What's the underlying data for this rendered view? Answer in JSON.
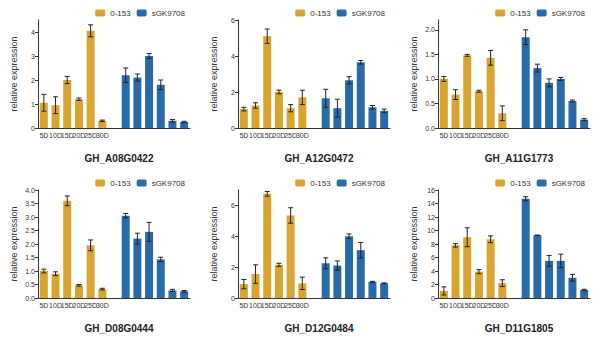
{
  "chart_data": [
    {
      "type": "bar",
      "title": "GH_A08G0422",
      "ylabel": "relative expression",
      "categories": [
        "5D",
        "10D",
        "15D",
        "20D",
        "25D",
        "30D",
        null,
        null,
        null,
        null,
        null,
        null,
        null
      ],
      "series": [
        {
          "name": "0-153",
          "color": "#DAA430",
          "values": [
            1.05,
            0.95,
            2.0,
            1.2,
            4.05,
            0.3,
            null,
            null,
            null,
            null,
            null,
            null,
            null
          ],
          "errors": [
            0.35,
            0.35,
            0.15,
            0.05,
            0.25,
            0.03,
            null,
            null,
            null,
            null,
            null,
            null,
            null
          ]
        },
        {
          "name": "sGK9708",
          "color": "#2A6AA8",
          "values": [
            null,
            null,
            null,
            null,
            null,
            null,
            null,
            2.2,
            2.1,
            3.0,
            1.8,
            0.3,
            0.25
          ],
          "errors": [
            null,
            null,
            null,
            null,
            null,
            null,
            null,
            0.3,
            0.15,
            0.1,
            0.2,
            0.05,
            0.03
          ]
        }
      ],
      "ylim": [
        0,
        4.5
      ],
      "yticks": [
        0,
        1,
        2,
        3,
        4
      ],
      "grid": false,
      "legend": "top right"
    },
    {
      "type": "bar",
      "title": "GH_A12G0472",
      "ylabel": "relative expression",
      "categories": [
        "5D",
        "10D",
        "15D",
        "20D",
        "25D",
        "30D",
        null,
        null,
        null,
        null,
        null,
        null,
        null
      ],
      "series": [
        {
          "name": "0-153",
          "color": "#DAA430",
          "values": [
            1.05,
            1.25,
            5.1,
            2.0,
            1.1,
            1.7,
            null,
            null,
            null,
            null,
            null,
            null,
            null
          ],
          "errors": [
            0.1,
            0.15,
            0.4,
            0.1,
            0.2,
            0.4,
            null,
            null,
            null,
            null,
            null,
            null,
            null
          ]
        },
        {
          "name": "sGK9708",
          "color": "#2A6AA8",
          "values": [
            null,
            null,
            null,
            null,
            null,
            null,
            null,
            1.65,
            1.1,
            2.65,
            3.65,
            1.15,
            0.95
          ],
          "errors": [
            null,
            null,
            null,
            null,
            null,
            null,
            null,
            0.5,
            0.5,
            0.2,
            0.1,
            0.1,
            0.1
          ]
        }
      ],
      "ylim": [
        0,
        6
      ],
      "yticks": [
        0,
        2,
        4,
        6
      ],
      "grid": false,
      "legend": "top right"
    },
    {
      "type": "bar",
      "title": "GH_A11G1773",
      "ylabel": "relative expression",
      "categories": [
        "5D",
        "10D",
        "15D",
        "20D",
        "25D",
        "30D",
        null,
        null,
        null,
        null,
        null,
        null,
        null
      ],
      "series": [
        {
          "name": "0-153",
          "color": "#DAA430",
          "values": [
            1.0,
            0.68,
            1.48,
            0.75,
            1.43,
            0.3,
            null,
            null,
            null,
            null,
            null,
            null,
            null
          ],
          "errors": [
            0.05,
            0.1,
            0.02,
            0.02,
            0.15,
            0.15,
            null,
            null,
            null,
            null,
            null,
            null,
            null
          ]
        },
        {
          "name": "sGK9708",
          "color": "#2A6AA8",
          "values": [
            null,
            null,
            null,
            null,
            null,
            null,
            null,
            1.85,
            1.22,
            0.92,
            1.0,
            0.55,
            0.17
          ],
          "errors": [
            null,
            null,
            null,
            null,
            null,
            null,
            null,
            0.15,
            0.08,
            0.08,
            0.03,
            0.02,
            0.02
          ]
        }
      ],
      "ylim": [
        0,
        2.2
      ],
      "yticks": [
        {
          "value": 0,
          "label": "0.0"
        },
        0.5,
        {
          "value": 1,
          "label": "1.0"
        },
        1.5,
        {
          "value": 2,
          "label": "2.0"
        }
      ],
      "grid": false,
      "legend": "top right"
    },
    {
      "type": "bar",
      "title": "GH_D08G0444",
      "ylabel": "relative expression",
      "categories": [
        "5D",
        "10D",
        "15D",
        "20D",
        "25D",
        "30D",
        null,
        null,
        null,
        null,
        null,
        null,
        null
      ],
      "series": [
        {
          "name": "0-153",
          "color": "#DAA430",
          "values": [
            1.0,
            0.9,
            3.6,
            0.47,
            1.95,
            0.33,
            null,
            null,
            null,
            null,
            null,
            null,
            null
          ],
          "errors": [
            0.07,
            0.07,
            0.18,
            0.03,
            0.2,
            0.03,
            null,
            null,
            null,
            null,
            null,
            null,
            null
          ]
        },
        {
          "name": "sGK9708",
          "color": "#2A6AA8",
          "values": [
            null,
            null,
            null,
            null,
            null,
            null,
            null,
            3.05,
            2.2,
            2.45,
            1.43,
            0.28,
            0.25
          ],
          "errors": [
            null,
            null,
            null,
            null,
            null,
            null,
            null,
            0.08,
            0.2,
            0.35,
            0.08,
            0.04,
            0.03
          ]
        }
      ],
      "ylim": [
        0,
        4
      ],
      "yticks": [
        {
          "value": 0,
          "label": "0.0"
        },
        0.5,
        {
          "value": 1,
          "label": "1.0"
        },
        1.5,
        {
          "value": 2,
          "label": "2.0"
        },
        2.5,
        {
          "value": 3,
          "label": "3.0"
        },
        3.5,
        {
          "value": 4,
          "label": "4.0"
        }
      ],
      "grid": false,
      "legend": "top right"
    },
    {
      "type": "bar",
      "title": "GH_D12G0484",
      "ylabel": "relative expression",
      "categories": [
        "5D",
        "10D",
        "15D",
        "20D",
        "25D",
        "30D",
        null,
        null,
        null,
        null,
        null,
        null,
        null
      ],
      "series": [
        {
          "name": "0-153",
          "color": "#DAA430",
          "values": [
            0.9,
            1.55,
            6.75,
            2.15,
            5.35,
            0.95,
            null,
            null,
            null,
            null,
            null,
            null,
            null
          ],
          "errors": [
            0.3,
            0.6,
            0.15,
            0.1,
            0.5,
            0.4,
            null,
            null,
            null,
            null,
            null,
            null,
            null
          ]
        },
        {
          "name": "sGK9708",
          "color": "#2A6AA8",
          "values": [
            null,
            null,
            null,
            null,
            null,
            null,
            null,
            2.25,
            2.1,
            4.0,
            3.1,
            1.05,
            0.95
          ],
          "errors": [
            null,
            null,
            null,
            null,
            null,
            null,
            null,
            0.35,
            0.3,
            0.15,
            0.5,
            0.03,
            0.03
          ]
        }
      ],
      "ylim": [
        0,
        7
      ],
      "yticks": [
        0,
        2,
        4,
        6
      ],
      "grid": false,
      "legend": "top right"
    },
    {
      "type": "bar",
      "title": "GH_D11G1805",
      "ylabel": "relative expression",
      "categories": [
        "5D",
        "10D",
        "15D",
        "20D",
        "25D",
        "30D",
        null,
        null,
        null,
        null,
        null,
        null,
        null
      ],
      "series": [
        {
          "name": "0-153",
          "color": "#DAA430",
          "values": [
            1.05,
            7.8,
            9.0,
            3.9,
            8.7,
            2.2,
            null,
            null,
            null,
            null,
            null,
            null,
            null
          ],
          "errors": [
            0.6,
            0.25,
            1.4,
            0.3,
            0.5,
            0.5,
            null,
            null,
            null,
            null,
            null,
            null,
            null
          ]
        },
        {
          "name": "sGK9708",
          "color": "#2A6AA8",
          "values": [
            null,
            null,
            null,
            null,
            null,
            null,
            null,
            14.7,
            9.3,
            5.5,
            5.5,
            3.0,
            1.2
          ],
          "errors": [
            null,
            null,
            null,
            null,
            null,
            null,
            null,
            0.3,
            0,
            0.8,
            1.0,
            0.5,
            0.1
          ]
        }
      ],
      "ylim": [
        0,
        16
      ],
      "yticks": [
        0,
        2,
        4,
        6,
        8,
        10,
        12,
        14,
        16
      ],
      "grid": false,
      "legend": "top right"
    }
  ]
}
